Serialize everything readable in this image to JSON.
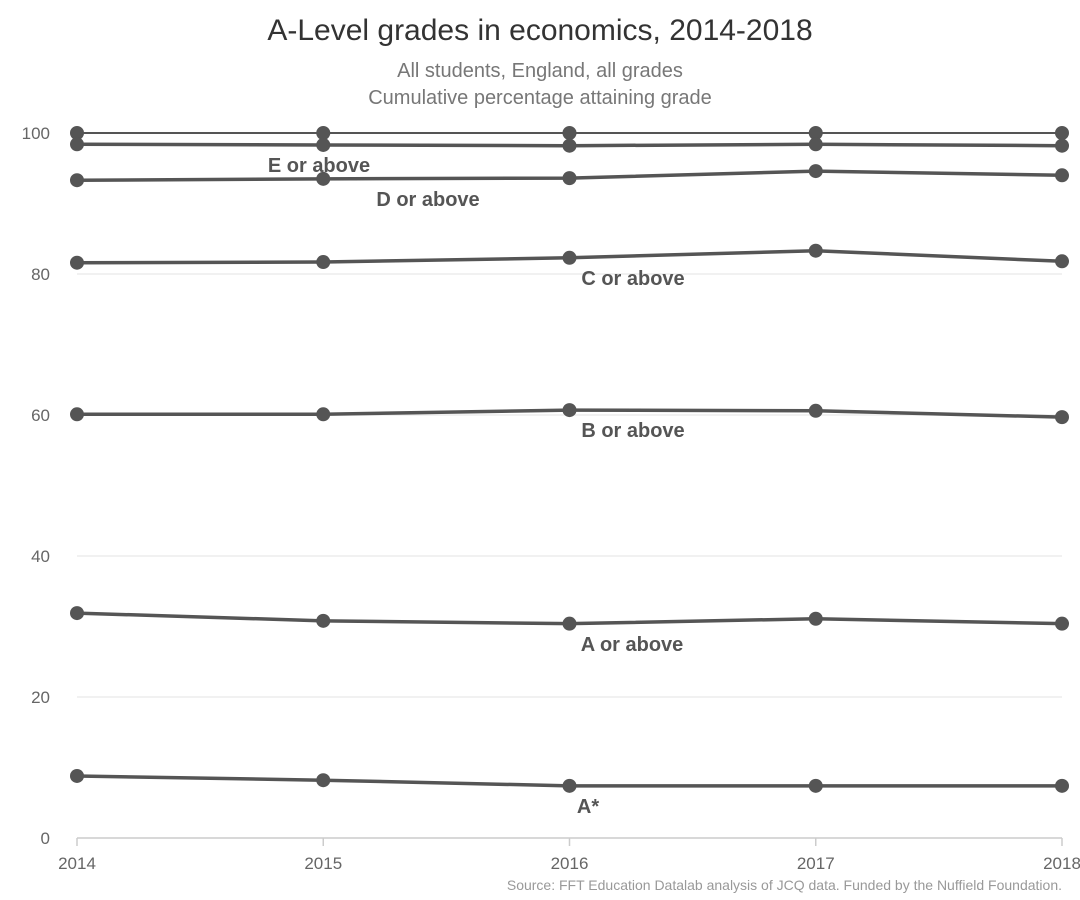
{
  "chart_data": {
    "type": "line",
    "title": "A-Level grades in economics, 2014-2018",
    "subtitle": [
      "All students, England, all grades",
      "Cumulative percentage attaining grade"
    ],
    "source": "Source: FFT Education Datalab analysis of JCQ data. Funded by the Nuffield Foundation.",
    "xlabel": "",
    "ylabel": "",
    "x": [
      "2014",
      "2015",
      "2016",
      "2017",
      "2018"
    ],
    "ylim": [
      0,
      100
    ],
    "yticks": [
      "0",
      "20",
      "40",
      "60",
      "80",
      "100"
    ],
    "grid": true,
    "line_color": "#555555",
    "series": [
      {
        "name": "",
        "values": [
          100,
          100,
          100,
          100,
          100
        ]
      },
      {
        "name": "E or above",
        "values": [
          98.4,
          98.3,
          98.2,
          98.4,
          98.2
        ]
      },
      {
        "name": "D or above",
        "values": [
          93.3,
          93.5,
          93.6,
          94.6,
          94.0
        ]
      },
      {
        "name": "C or above",
        "values": [
          81.6,
          81.7,
          82.3,
          83.3,
          81.8
        ]
      },
      {
        "name": "B or above",
        "values": [
          60.1,
          60.1,
          60.7,
          60.6,
          59.7
        ]
      },
      {
        "name": "A or above",
        "values": [
          31.9,
          30.8,
          30.4,
          31.1,
          30.4
        ]
      },
      {
        "name": "A*",
        "values": [
          8.8,
          8.2,
          7.4,
          7.4,
          7.4
        ]
      }
    ]
  }
}
